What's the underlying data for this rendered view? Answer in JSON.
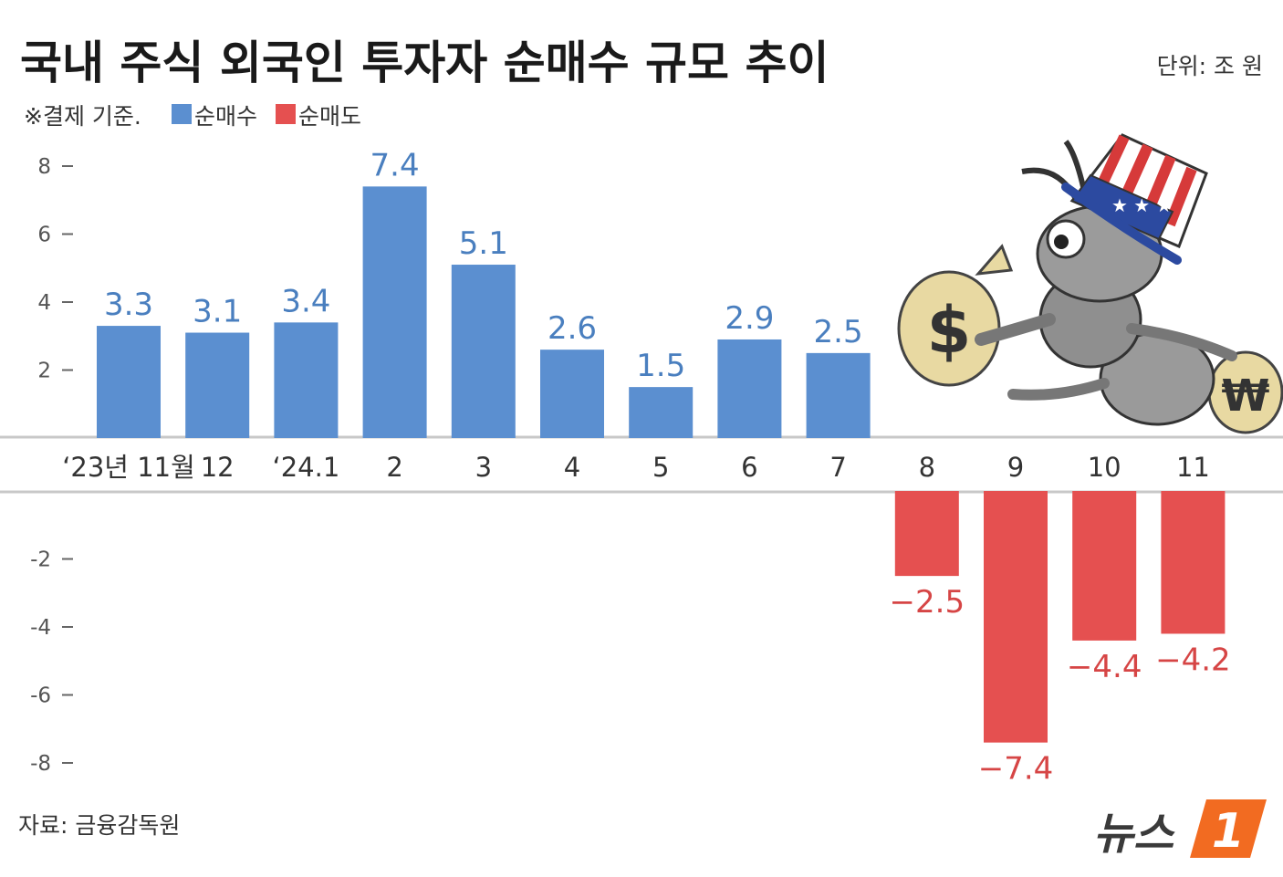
{
  "title": "국내 주식 외국인 투자자 순매수 규모 추이",
  "unit": "단위: 조 원",
  "note": "※결제 기준.",
  "legend": [
    {
      "label": "순매수",
      "color": "#5b8fd0"
    },
    {
      "label": "순매도",
      "color": "#e55050"
    }
  ],
  "source": "자료: 금융감독원",
  "logo": {
    "text": "뉴스",
    "mark": "1",
    "mark_color": "#f26b21"
  },
  "chart_data": {
    "type": "bar",
    "categories": [
      "‘23년 11월",
      "12",
      "‘24.1",
      "2",
      "3",
      "4",
      "5",
      "6",
      "7",
      "8",
      "9",
      "10",
      "11"
    ],
    "values": [
      3.3,
      3.1,
      3.4,
      7.4,
      5.1,
      2.6,
      1.5,
      2.9,
      2.5,
      -2.5,
      -7.4,
      -4.4,
      -4.2
    ],
    "value_labels": [
      "3.3",
      "3.1",
      "3.4",
      "7.4",
      "5.1",
      "2.6",
      "1.5",
      "2.9",
      "2.5",
      "−2.5",
      "−7.4",
      "−4.4",
      "−4.2"
    ],
    "positive_ticks": [
      "8",
      "6",
      "4",
      "2"
    ],
    "negative_ticks": [
      "-2",
      "-4",
      "-6",
      "-8"
    ],
    "ylim": [
      -8,
      8
    ],
    "grid": false,
    "colors": {
      "positive": "#5b8fd0",
      "negative": "#e55050",
      "positive_label": "#4a7fbf",
      "negative_label": "#d64545"
    }
  }
}
